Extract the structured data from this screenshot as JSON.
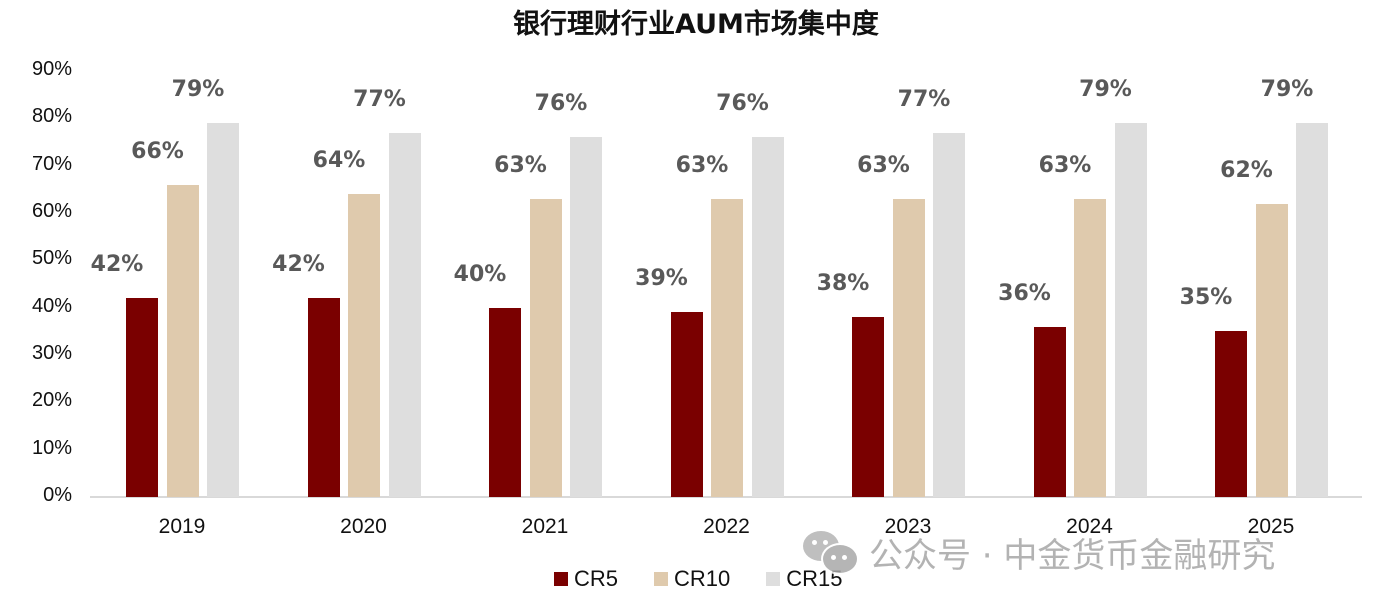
{
  "chart_data": {
    "type": "bar",
    "title": "银行理财行业AUM市场集中度",
    "xlabel": "",
    "ylabel": "",
    "ylim": [
      0,
      90
    ],
    "yticks": [
      "0%",
      "10%",
      "20%",
      "30%",
      "40%",
      "50%",
      "60%",
      "70%",
      "80%",
      "90%"
    ],
    "grid": false,
    "legend_position": "bottom",
    "categories": [
      "2019",
      "2020",
      "2021",
      "2022",
      "2023",
      "2024",
      "2025"
    ],
    "series": [
      {
        "name": "CR5",
        "color": "#7a0000",
        "values": [
          42,
          42,
          40,
          39,
          38,
          36,
          35
        ],
        "labels": [
          "42%",
          "42%",
          "40%",
          "39%",
          "38%",
          "36%",
          "35%"
        ]
      },
      {
        "name": "CR10",
        "color": "#dfcaad",
        "values": [
          66,
          64,
          63,
          63,
          63,
          63,
          62
        ],
        "labels": [
          "66%",
          "64%",
          "63%",
          "63%",
          "63%",
          "63%",
          "62%"
        ]
      },
      {
        "name": "CR15",
        "color": "#dedede",
        "values": [
          79,
          77,
          76,
          76,
          77,
          79,
          79
        ],
        "labels": [
          "79%",
          "77%",
          "76%",
          "76%",
          "77%",
          "79%",
          "79%"
        ]
      }
    ]
  },
  "watermark": {
    "icon": "wechat-icon",
    "text": "公众号 · 中金货币金融研究"
  }
}
